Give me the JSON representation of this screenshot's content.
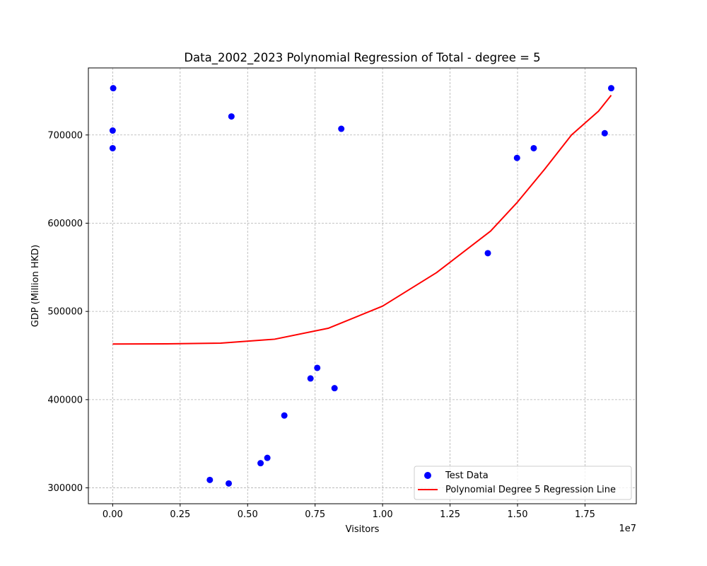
{
  "chart_data": {
    "type": "scatter",
    "title": "Data_2002_2023 Polynomial Regression of Total - degree = 5",
    "xlabel": "Visitors",
    "ylabel": "GDP (Million HKD)",
    "x_offset_label": "1e7",
    "x_scale": 10000000,
    "xlim": [
      -900000,
      19400000
    ],
    "ylim": [
      282000,
      776000
    ],
    "xticks": [
      0,
      2500000,
      5000000,
      7500000,
      10000000,
      12500000,
      15000000,
      17500000
    ],
    "xtick_labels": [
      "0.00",
      "0.25",
      "0.50",
      "0.75",
      "1.00",
      "1.25",
      "1.50",
      "1.75"
    ],
    "yticks": [
      300000,
      400000,
      500000,
      600000,
      700000
    ],
    "ytick_labels": [
      "300000",
      "400000",
      "500000",
      "600000",
      "700000"
    ],
    "grid": true,
    "legend_position": "lower-right",
    "colors": {
      "points": "#0000ff",
      "line": "#ff0000"
    },
    "series": [
      {
        "name": "Test Data",
        "kind": "scatter",
        "points": [
          [
            20000,
            753000
          ],
          [
            0,
            705000
          ],
          [
            0,
            685000
          ],
          [
            4400000,
            721000
          ],
          [
            8470000,
            707000
          ],
          [
            3600000,
            309000
          ],
          [
            4300000,
            305000
          ],
          [
            5480000,
            328000
          ],
          [
            5730000,
            334000
          ],
          [
            6360000,
            382000
          ],
          [
            7330000,
            424000
          ],
          [
            7580000,
            436000
          ],
          [
            8220000,
            413000
          ],
          [
            13900000,
            566000
          ],
          [
            14980000,
            674000
          ],
          [
            15600000,
            685000
          ],
          [
            18230000,
            702000
          ],
          [
            18470000,
            753000
          ]
        ]
      },
      {
        "name": "Polynomial Degree 5 Regression Line",
        "kind": "line",
        "points": [
          [
            0,
            463000
          ],
          [
            2000000,
            463200
          ],
          [
            4000000,
            464000
          ],
          [
            6000000,
            468500
          ],
          [
            8000000,
            481000
          ],
          [
            10000000,
            506000
          ],
          [
            12000000,
            544000
          ],
          [
            14000000,
            591000
          ],
          [
            15000000,
            624000
          ],
          [
            16000000,
            661000
          ],
          [
            17000000,
            700000
          ],
          [
            18000000,
            727000
          ],
          [
            18470000,
            745000
          ]
        ]
      }
    ]
  }
}
